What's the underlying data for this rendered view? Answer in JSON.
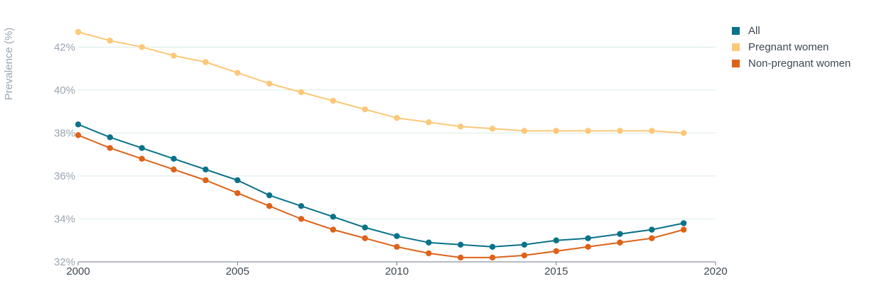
{
  "chart_data": {
    "type": "line",
    "title": "",
    "xlabel": "",
    "ylabel": "Prevalence (%)",
    "x": [
      2000,
      2001,
      2002,
      2003,
      2004,
      2005,
      2006,
      2007,
      2008,
      2009,
      2010,
      2011,
      2012,
      2013,
      2014,
      2015,
      2016,
      2017,
      2018,
      2019
    ],
    "xlim": [
      2000,
      2020
    ],
    "ylim": [
      32,
      43.2
    ],
    "x_ticks": [
      "2000",
      "2005",
      "2010",
      "2015",
      "2020"
    ],
    "y_ticks": [
      "32%",
      "34%",
      "36%",
      "38%",
      "40%",
      "42%"
    ],
    "grid": "horizontal",
    "legend_position": "top-right",
    "series": [
      {
        "name": "All",
        "color": "#0a7289",
        "values": [
          38.4,
          37.8,
          37.3,
          36.8,
          36.3,
          35.8,
          35.1,
          34.6,
          34.1,
          33.6,
          33.2,
          32.9,
          32.8,
          32.7,
          32.8,
          33.0,
          33.1,
          33.3,
          33.5,
          33.8
        ]
      },
      {
        "name": "Pregnant women",
        "color": "#fcc878",
        "values": [
          42.7,
          42.3,
          42.0,
          41.6,
          41.3,
          40.8,
          40.3,
          39.9,
          39.5,
          39.1,
          38.7,
          38.5,
          38.3,
          38.2,
          38.1,
          38.1,
          38.1,
          38.1,
          38.1,
          38.0
        ]
      },
      {
        "name": "Non-pregnant women",
        "color": "#dd6319",
        "values": [
          37.9,
          37.3,
          36.8,
          36.3,
          35.8,
          35.2,
          34.6,
          34.0,
          33.5,
          33.1,
          32.7,
          32.4,
          32.2,
          32.2,
          32.3,
          32.5,
          32.7,
          32.9,
          33.1,
          33.5
        ]
      }
    ]
  }
}
